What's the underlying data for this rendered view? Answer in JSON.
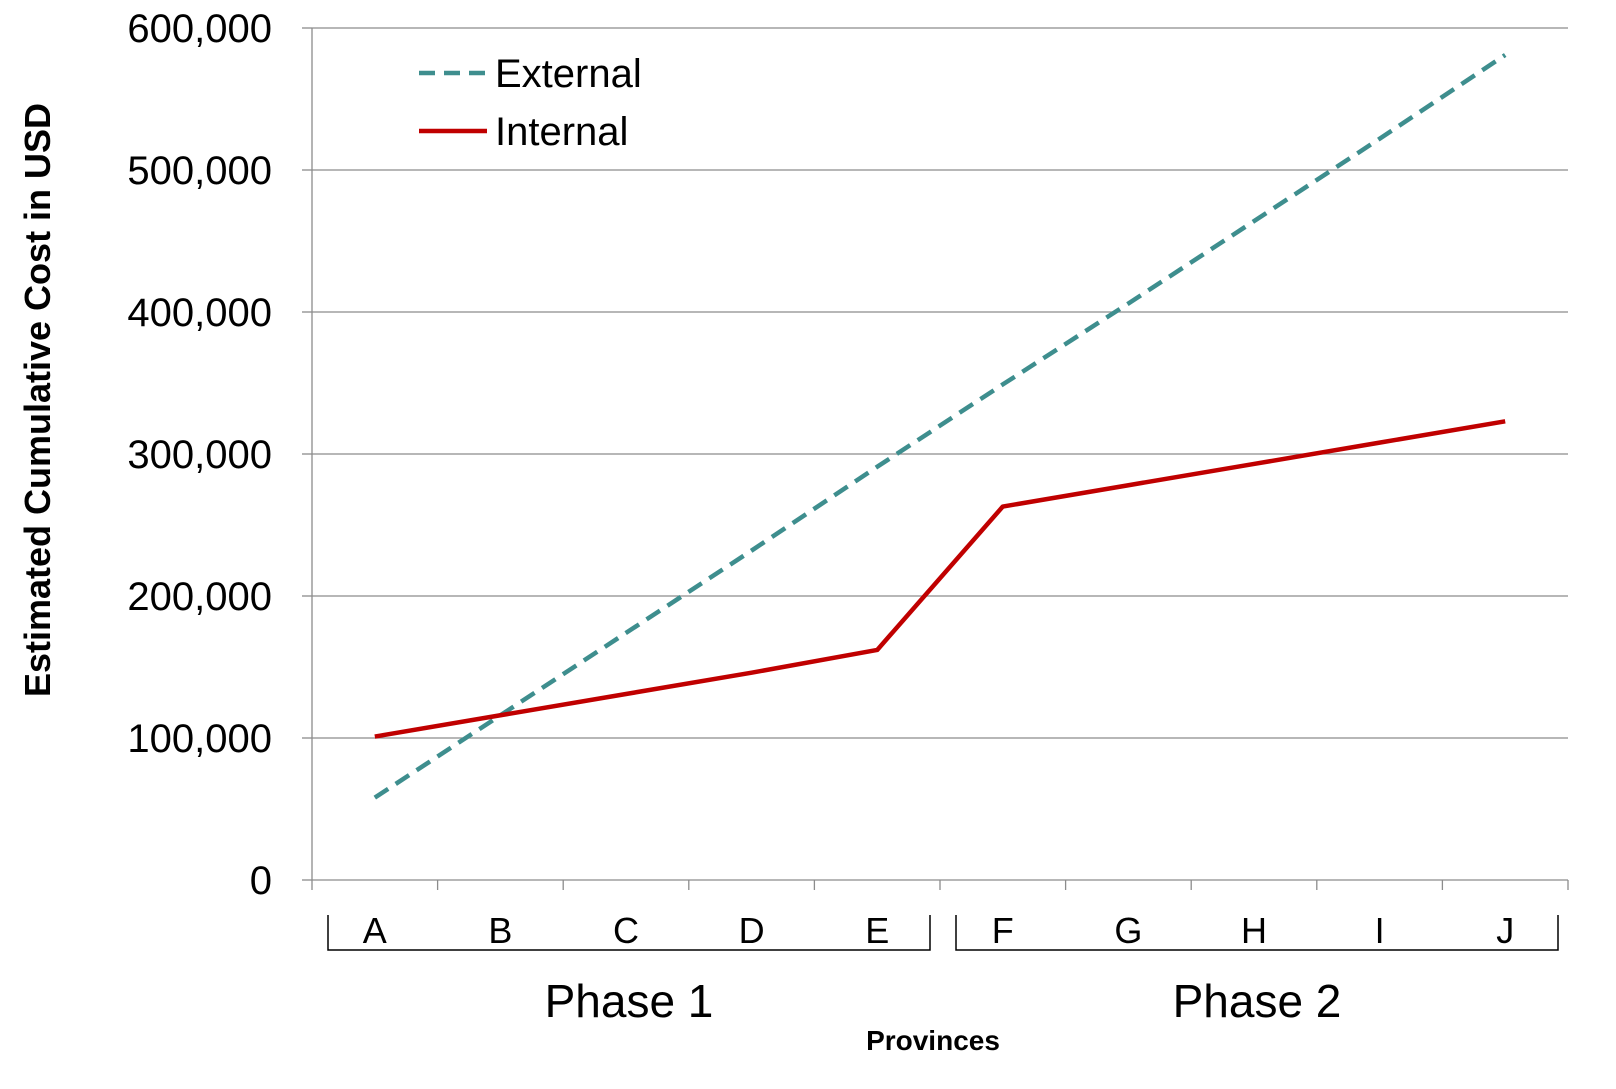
{
  "chart_data": {
    "type": "line",
    "title": "",
    "xlabel": "Provinces",
    "ylabel": "Estimated Cumulative Cost in USD",
    "ylim": [
      0,
      600000
    ],
    "yticks": [
      0,
      100000,
      200000,
      300000,
      400000,
      500000,
      600000
    ],
    "ytick_labels": [
      "0",
      "100,000",
      "200,000",
      "300,000",
      "400,000",
      "500,000",
      "600,000"
    ],
    "categories": [
      "A",
      "B",
      "C",
      "D",
      "E",
      "F",
      "G",
      "H",
      "I",
      "J"
    ],
    "groups": [
      {
        "label": "Phase 1",
        "categories": [
          "A",
          "B",
          "C",
          "D",
          "E"
        ]
      },
      {
        "label": "Phase 2",
        "categories": [
          "F",
          "G",
          "H",
          "I",
          "J"
        ]
      }
    ],
    "grid": true,
    "legend_position": "top-left",
    "series": [
      {
        "name": "External",
        "color": "#3E8E8E",
        "style": "dashed",
        "values": [
          58000,
          116000,
          174000,
          232000,
          291000,
          349000,
          406000,
          464000,
          522000,
          581000
        ]
      },
      {
        "name": "Internal",
        "color": "#C00000",
        "style": "solid",
        "values": [
          101000,
          116000,
          131000,
          146000,
          162000,
          263000,
          278000,
          293000,
          308000,
          323000
        ]
      }
    ]
  }
}
